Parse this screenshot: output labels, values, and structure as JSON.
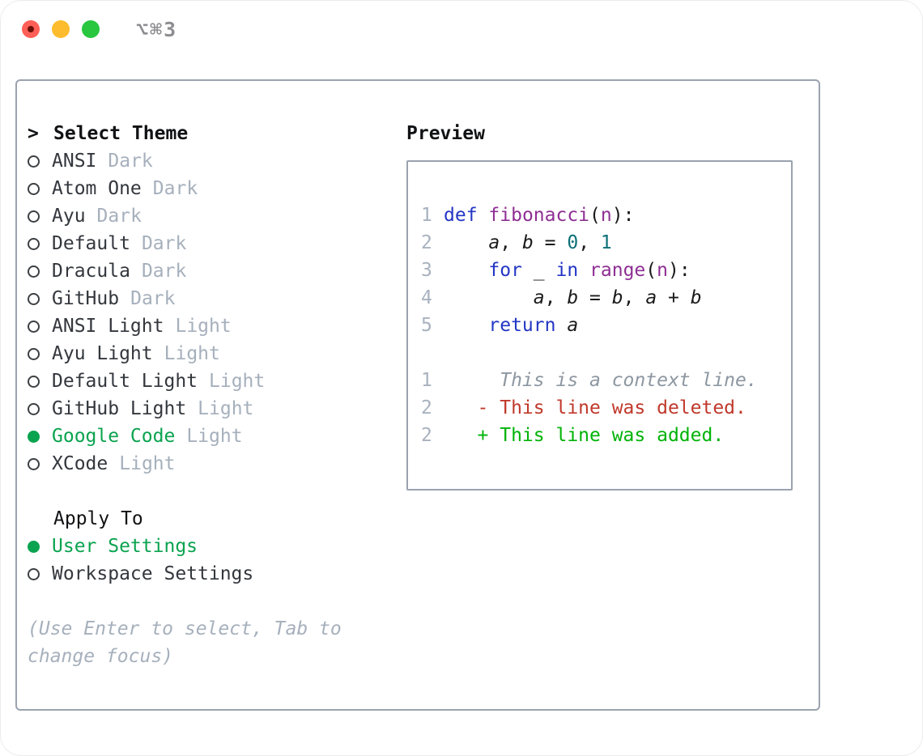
{
  "window": {
    "title": "⌥⌘3"
  },
  "theme_panel": {
    "cursor": ">",
    "title": "Select Theme",
    "items": [
      {
        "name": "ANSI",
        "variant": "Dark",
        "selected": false
      },
      {
        "name": "Atom One",
        "variant": "Dark",
        "selected": false
      },
      {
        "name": "Ayu",
        "variant": "Dark",
        "selected": false
      },
      {
        "name": "Default",
        "variant": "Dark",
        "selected": false
      },
      {
        "name": "Dracula",
        "variant": "Dark",
        "selected": false
      },
      {
        "name": "GitHub",
        "variant": "Dark",
        "selected": false
      },
      {
        "name": "ANSI Light",
        "variant": "Light",
        "selected": false
      },
      {
        "name": "Ayu Light",
        "variant": "Light",
        "selected": false
      },
      {
        "name": "Default Light",
        "variant": "Light",
        "selected": false
      },
      {
        "name": "GitHub Light",
        "variant": "Light",
        "selected": false
      },
      {
        "name": "Google Code",
        "variant": "Light",
        "selected": true
      },
      {
        "name": "XCode",
        "variant": "Light",
        "selected": false
      }
    ]
  },
  "apply_panel": {
    "title": "Apply To",
    "options": [
      {
        "label": "User Settings",
        "selected": true
      },
      {
        "label": "Workspace Settings",
        "selected": false
      }
    ]
  },
  "hint": "(Use Enter to select, Tab to change focus)",
  "preview": {
    "title": "Preview",
    "code_lines": [
      {
        "num": "1",
        "tokens": [
          [
            "kw",
            "def"
          ],
          [
            "pl",
            " "
          ],
          [
            "fn",
            "fibonacci"
          ],
          [
            "pl",
            "("
          ],
          [
            "fn",
            "n"
          ],
          [
            "pl",
            "):"
          ]
        ]
      },
      {
        "num": "2",
        "tokens": [
          [
            "pl",
            "    "
          ],
          [
            "var",
            "a"
          ],
          [
            "pl",
            ", "
          ],
          [
            "var",
            "b"
          ],
          [
            "pl",
            " = "
          ],
          [
            "num",
            "0"
          ],
          [
            "pl",
            ", "
          ],
          [
            "num",
            "1"
          ]
        ]
      },
      {
        "num": "3",
        "tokens": [
          [
            "pl",
            "    "
          ],
          [
            "kw",
            "for"
          ],
          [
            "pl",
            " _ "
          ],
          [
            "kw",
            "in"
          ],
          [
            "pl",
            " "
          ],
          [
            "fn",
            "range"
          ],
          [
            "pl",
            "("
          ],
          [
            "fn",
            "n"
          ],
          [
            "pl",
            "):"
          ]
        ]
      },
      {
        "num": "4",
        "tokens": [
          [
            "pl",
            "        "
          ],
          [
            "var",
            "a"
          ],
          [
            "pl",
            ", "
          ],
          [
            "var",
            "b"
          ],
          [
            "pl",
            " = "
          ],
          [
            "var",
            "b"
          ],
          [
            "pl",
            ", "
          ],
          [
            "var",
            "a"
          ],
          [
            "pl",
            " + "
          ],
          [
            "var",
            "b"
          ]
        ]
      },
      {
        "num": "5",
        "tokens": [
          [
            "pl",
            "    "
          ],
          [
            "kw",
            "return"
          ],
          [
            "pl",
            " "
          ],
          [
            "var",
            "a"
          ]
        ]
      }
    ],
    "diff_lines": [
      {
        "num": "1",
        "kind": "context",
        "text": "     This is a context line."
      },
      {
        "num": "2",
        "kind": "deleted",
        "text": "   - This line was deleted."
      },
      {
        "num": "2",
        "kind": "added",
        "text": "   + This line was added."
      }
    ]
  },
  "colors": {
    "tl_red": "#ff5f56",
    "tl_red_dot": "#6b1008",
    "tl_yellow": "#fdbc2e",
    "tl_green": "#29c740",
    "titlebar_gray": "#8e8e92",
    "border_gray": "#9aa3ae",
    "title_black": "#111214",
    "item_dark": "#33373d",
    "muted_gray": "#a6b0bc",
    "accent_green": "#0aa34f",
    "added_green": "#00b307",
    "deleted_red": "#c0392b",
    "context_gray": "#8d97a1",
    "lnum_gray": "#a8b2bf",
    "kw_blue": "#2336c4",
    "fn_purple": "#8e2f93",
    "num_teal": "#0c7077",
    "code_black": "#1a1a1a"
  }
}
